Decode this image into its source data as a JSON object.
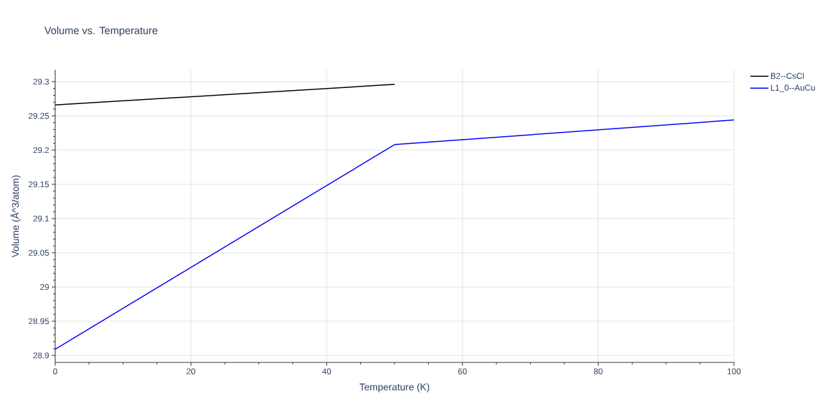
{
  "chart_data": {
    "type": "line",
    "title": "Volume vs. Temperature",
    "xlabel": "Temperature (K)",
    "ylabel": "Volume (Å^3/atom)",
    "series": [
      {
        "name": "B2--CsCl",
        "color": "#000000",
        "x": [
          0,
          50
        ],
        "values": [
          29.266,
          29.296
        ]
      },
      {
        "name": "L1_0--AuCu",
        "color": "#0000ff",
        "x": [
          0,
          50,
          100
        ],
        "values": [
          28.909,
          29.208,
          29.244
        ]
      }
    ],
    "xlim": [
      0,
      100
    ],
    "xticks": [
      0,
      20,
      40,
      60,
      80,
      100
    ],
    "ylim": [
      28.8898,
      29.3173
    ],
    "yticks": [
      28.9,
      28.95,
      29,
      29.05,
      29.1,
      29.15,
      29.2,
      29.25,
      29.3
    ],
    "grid": true,
    "legend": "top right",
    "line_style": "solid"
  }
}
